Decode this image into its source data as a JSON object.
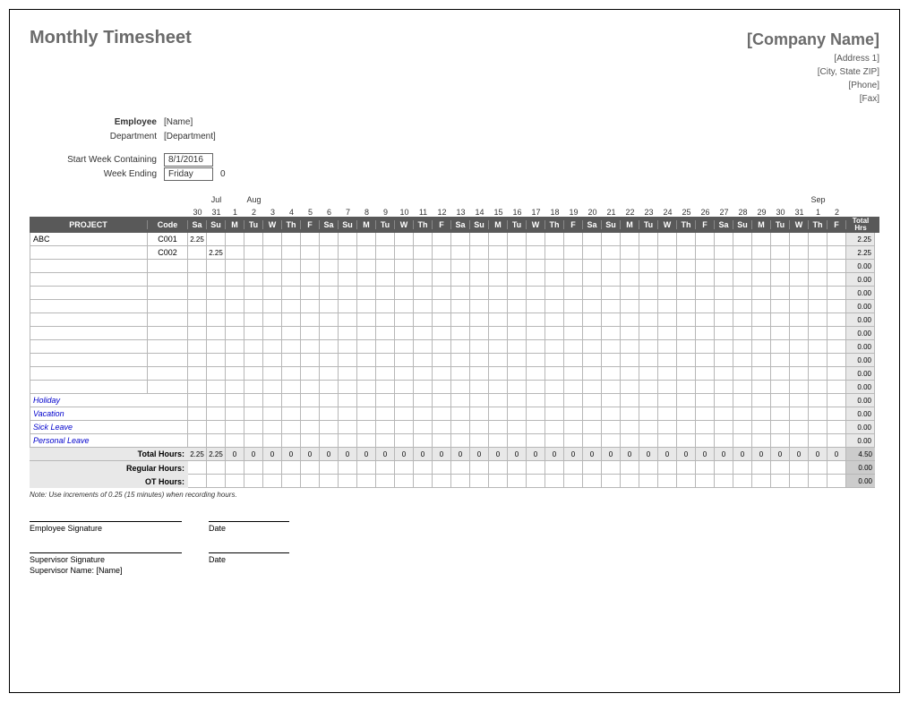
{
  "title": "Monthly Timesheet",
  "company": {
    "name": "[Company Name]",
    "address1": "[Address 1]",
    "address2": "[City, State ZIP]",
    "phone": "[Phone]",
    "fax": "[Fax]"
  },
  "meta": {
    "employee_label": "Employee",
    "employee_value": "[Name]",
    "department_label": "Department",
    "department_value": "[Department]",
    "start_week_label": "Start Week Containing",
    "start_week_value": "8/1/2016",
    "week_ending_label": "Week Ending",
    "week_ending_value": "Friday",
    "week_ending_extra": "0"
  },
  "months": [
    "",
    "Jul",
    "",
    "Aug",
    "",
    "",
    "",
    "",
    "",
    "",
    "",
    "",
    "",
    "",
    "",
    "",
    "",
    "",
    "",
    "",
    "",
    "",
    "",
    "",
    "",
    "",
    "",
    "",
    "",
    "",
    "",
    "",
    "",
    "Sep",
    ""
  ],
  "dates": [
    "30",
    "31",
    "1",
    "2",
    "3",
    "4",
    "5",
    "6",
    "7",
    "8",
    "9",
    "10",
    "11",
    "12",
    "13",
    "14",
    "15",
    "16",
    "17",
    "18",
    "19",
    "20",
    "21",
    "22",
    "23",
    "24",
    "25",
    "26",
    "27",
    "28",
    "29",
    "30",
    "31",
    "1",
    "2"
  ],
  "days": [
    "Sa",
    "Su",
    "M",
    "Tu",
    "W",
    "Th",
    "F",
    "Sa",
    "Su",
    "M",
    "Tu",
    "W",
    "Th",
    "F",
    "Sa",
    "Su",
    "M",
    "Tu",
    "W",
    "Th",
    "F",
    "Sa",
    "Su",
    "M",
    "Tu",
    "W",
    "Th",
    "F",
    "Sa",
    "Su",
    "M",
    "Tu",
    "W",
    "Th",
    "F"
  ],
  "headers": {
    "project": "PROJECT",
    "code": "Code",
    "total": "Total Hrs"
  },
  "rows": [
    {
      "project": "ABC",
      "code": "C001",
      "cells": [
        "2.25",
        "",
        "",
        "",
        "",
        "",
        "",
        "",
        "",
        "",
        "",
        "",
        "",
        "",
        "",
        "",
        "",
        "",
        "",
        "",
        "",
        "",
        "",
        "",
        "",
        "",
        "",
        "",
        "",
        "",
        "",
        "",
        "",
        "",
        ""
      ],
      "total": "2.25"
    },
    {
      "project": "",
      "code": "C002",
      "cells": [
        "",
        "2.25",
        "",
        "",
        "",
        "",
        "",
        "",
        "",
        "",
        "",
        "",
        "",
        "",
        "",
        "",
        "",
        "",
        "",
        "",
        "",
        "",
        "",
        "",
        "",
        "",
        "",
        "",
        "",
        "",
        "",
        "",
        "",
        "",
        ""
      ],
      "total": "2.25"
    },
    {
      "project": "",
      "code": "",
      "cells": [
        "",
        "",
        "",
        "",
        "",
        "",
        "",
        "",
        "",
        "",
        "",
        "",
        "",
        "",
        "",
        "",
        "",
        "",
        "",
        "",
        "",
        "",
        "",
        "",
        "",
        "",
        "",
        "",
        "",
        "",
        "",
        "",
        "",
        "",
        ""
      ],
      "total": "0.00"
    },
    {
      "project": "",
      "code": "",
      "cells": [
        "",
        "",
        "",
        "",
        "",
        "",
        "",
        "",
        "",
        "",
        "",
        "",
        "",
        "",
        "",
        "",
        "",
        "",
        "",
        "",
        "",
        "",
        "",
        "",
        "",
        "",
        "",
        "",
        "",
        "",
        "",
        "",
        "",
        "",
        ""
      ],
      "total": "0.00"
    },
    {
      "project": "",
      "code": "",
      "cells": [
        "",
        "",
        "",
        "",
        "",
        "",
        "",
        "",
        "",
        "",
        "",
        "",
        "",
        "",
        "",
        "",
        "",
        "",
        "",
        "",
        "",
        "",
        "",
        "",
        "",
        "",
        "",
        "",
        "",
        "",
        "",
        "",
        "",
        "",
        ""
      ],
      "total": "0.00"
    },
    {
      "project": "",
      "code": "",
      "cells": [
        "",
        "",
        "",
        "",
        "",
        "",
        "",
        "",
        "",
        "",
        "",
        "",
        "",
        "",
        "",
        "",
        "",
        "",
        "",
        "",
        "",
        "",
        "",
        "",
        "",
        "",
        "",
        "",
        "",
        "",
        "",
        "",
        "",
        "",
        ""
      ],
      "total": "0.00"
    },
    {
      "project": "",
      "code": "",
      "cells": [
        "",
        "",
        "",
        "",
        "",
        "",
        "",
        "",
        "",
        "",
        "",
        "",
        "",
        "",
        "",
        "",
        "",
        "",
        "",
        "",
        "",
        "",
        "",
        "",
        "",
        "",
        "",
        "",
        "",
        "",
        "",
        "",
        "",
        "",
        ""
      ],
      "total": "0.00"
    },
    {
      "project": "",
      "code": "",
      "cells": [
        "",
        "",
        "",
        "",
        "",
        "",
        "",
        "",
        "",
        "",
        "",
        "",
        "",
        "",
        "",
        "",
        "",
        "",
        "",
        "",
        "",
        "",
        "",
        "",
        "",
        "",
        "",
        "",
        "",
        "",
        "",
        "",
        "",
        "",
        ""
      ],
      "total": "0.00"
    },
    {
      "project": "",
      "code": "",
      "cells": [
        "",
        "",
        "",
        "",
        "",
        "",
        "",
        "",
        "",
        "",
        "",
        "",
        "",
        "",
        "",
        "",
        "",
        "",
        "",
        "",
        "",
        "",
        "",
        "",
        "",
        "",
        "",
        "",
        "",
        "",
        "",
        "",
        "",
        "",
        ""
      ],
      "total": "0.00"
    },
    {
      "project": "",
      "code": "",
      "cells": [
        "",
        "",
        "",
        "",
        "",
        "",
        "",
        "",
        "",
        "",
        "",
        "",
        "",
        "",
        "",
        "",
        "",
        "",
        "",
        "",
        "",
        "",
        "",
        "",
        "",
        "",
        "",
        "",
        "",
        "",
        "",
        "",
        "",
        "",
        ""
      ],
      "total": "0.00"
    },
    {
      "project": "",
      "code": "",
      "cells": [
        "",
        "",
        "",
        "",
        "",
        "",
        "",
        "",
        "",
        "",
        "",
        "",
        "",
        "",
        "",
        "",
        "",
        "",
        "",
        "",
        "",
        "",
        "",
        "",
        "",
        "",
        "",
        "",
        "",
        "",
        "",
        "",
        "",
        "",
        ""
      ],
      "total": "0.00"
    },
    {
      "project": "",
      "code": "",
      "cells": [
        "",
        "",
        "",
        "",
        "",
        "",
        "",
        "",
        "",
        "",
        "",
        "",
        "",
        "",
        "",
        "",
        "",
        "",
        "",
        "",
        "",
        "",
        "",
        "",
        "",
        "",
        "",
        "",
        "",
        "",
        "",
        "",
        "",
        "",
        ""
      ],
      "total": "0.00"
    }
  ],
  "leave_rows": [
    {
      "label": "Holiday",
      "total": "0.00"
    },
    {
      "label": "Vacation",
      "total": "0.00"
    },
    {
      "label": "Sick Leave",
      "total": "0.00"
    },
    {
      "label": "Personal Leave",
      "total": "0.00"
    }
  ],
  "summary": {
    "total_label": "Total Hours:",
    "total_cells": [
      "2.25",
      "2.25",
      "0",
      "0",
      "0",
      "0",
      "0",
      "0",
      "0",
      "0",
      "0",
      "0",
      "0",
      "0",
      "0",
      "0",
      "0",
      "0",
      "0",
      "0",
      "0",
      "0",
      "0",
      "0",
      "0",
      "0",
      "0",
      "0",
      "0",
      "0",
      "0",
      "0",
      "0",
      "0",
      "0"
    ],
    "total_sum": "4.50",
    "regular_label": "Regular Hours:",
    "regular_sum": "0.00",
    "ot_label": "OT Hours:",
    "ot_sum": "0.00"
  },
  "note": "Note: Use increments of 0.25 (15 minutes) when recording hours.",
  "signatures": {
    "employee_sig": "Employee Signature",
    "date": "Date",
    "supervisor_sig": "Supervisor Signature",
    "supervisor_name_label": "Supervisor Name:",
    "supervisor_name_value": "[Name]"
  },
  "colors": {
    "band_bg": "#595959",
    "shade_bg": "#e8e8e8",
    "total_shade": "#cccccc",
    "border": "#b7b7b7",
    "title_color": "#6b6b6b",
    "leave_color": "#0000cc"
  }
}
